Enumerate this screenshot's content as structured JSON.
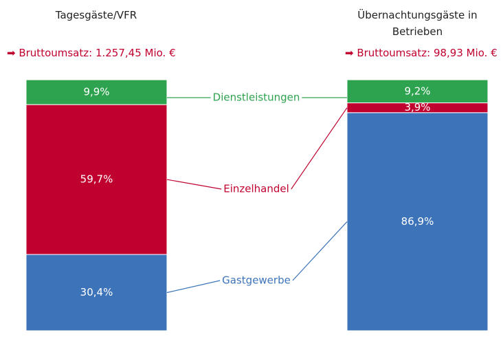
{
  "chart_data": {
    "type": "bar",
    "stacked": true,
    "categories": [
      "Tagesgäste/VFR",
      "Übernachtungsgäste in Betrieben"
    ],
    "annotations": [
      "Bruttoumsatz: 1.257,45 Mio. €",
      "Bruttoumsatz: 98,93 Mio. €"
    ],
    "series": [
      {
        "name": "Gastgewerbe",
        "color": "#3d74b9",
        "values": [
          30.4,
          86.9
        ],
        "value_labels": [
          "30,4%",
          "86,9%"
        ]
      },
      {
        "name": "Einzelhandel",
        "color": "#c0002e",
        "values": [
          59.7,
          3.9
        ],
        "value_labels": [
          "59,7%",
          "3,9%"
        ]
      },
      {
        "name": "Dienstleistungen",
        "color": "#2ea34f",
        "values": [
          9.9,
          9.2
        ],
        "value_labels": [
          "9,9%",
          "9,2%"
        ]
      }
    ],
    "ylim": [
      0,
      100
    ]
  }
}
